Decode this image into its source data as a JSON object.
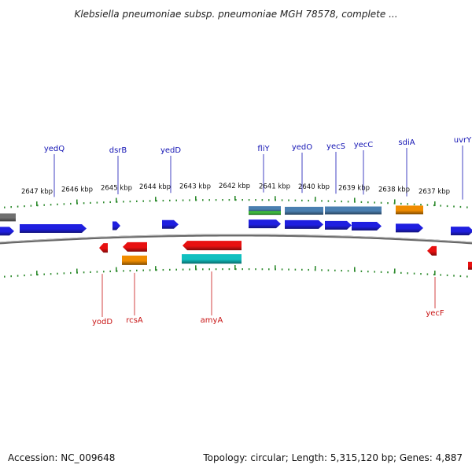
{
  "title": "Klebsiella pneumoniae subsp. pneumoniae MGH 78578, complete ...",
  "footer": {
    "accession": "Accession: NC_009648",
    "summary": "Topology: circular; Length: 5,315,120 bp; Genes: 4,887"
  },
  "colors": {
    "forward": "#1f1fe0",
    "reverse": "#e81010",
    "orange": "#f08c00",
    "cyan": "#11c0c0",
    "steel": "#4a7fb0",
    "green": "#3cb43c",
    "gray": "#707070",
    "tick": "#2e8b2e",
    "forward_label": "#1414b4",
    "reverse_label": "#c81414"
  },
  "kbp_ticks": [
    "2647 kbp",
    "2646 kbp",
    "2645 kbp",
    "2644 kbp",
    "2643 kbp",
    "2642 kbp",
    "2641 kbp",
    "2640 kbp",
    "2639 kbp",
    "2638 kbp",
    "2637 kbp"
  ],
  "forward_labels": [
    "yedQ",
    "dsrB",
    "yedD",
    "fliY",
    "yedO",
    "yecS",
    "yecC",
    "sdiA",
    "uvrY"
  ],
  "reverse_labels": [
    "yodD",
    "rcsA",
    "amyA",
    "yecF"
  ]
}
